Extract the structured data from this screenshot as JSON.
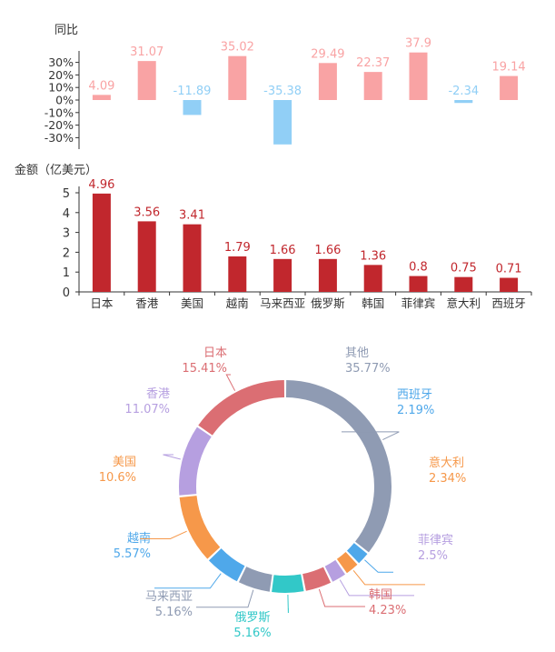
{
  "chart_data": [
    {
      "type": "bar",
      "ylabel": "同比",
      "categories": [
        "日本",
        "香港",
        "美国",
        "越南",
        "马来西亚",
        "俄罗斯",
        "韩国",
        "菲律宾",
        "意大利",
        "西班牙"
      ],
      "values": [
        4.09,
        31.07,
        -11.89,
        35.02,
        -35.38,
        29.49,
        22.37,
        37.9,
        -2.34,
        19.14
      ],
      "value_labels": [
        "4.09",
        "31.07",
        "-11.89",
        "35.02",
        "-35.38",
        "29.49",
        "22.37",
        "37.9",
        "-2.34",
        "19.14"
      ],
      "yticks": [
        "30%",
        "20%",
        "10%",
        "0%",
        "-10%",
        "-20%",
        "-30%"
      ],
      "ylim": [
        -35,
        35
      ],
      "colors": {
        "positive": "#f9a3a4",
        "negative": "#91cff6"
      }
    },
    {
      "type": "bar",
      "ylabel": "金额（亿美元）",
      "categories": [
        "日本",
        "香港",
        "美国",
        "越南",
        "马来西亚",
        "俄罗斯",
        "韩国",
        "菲律宾",
        "意大利",
        "西班牙"
      ],
      "values": [
        4.96,
        3.56,
        3.41,
        1.79,
        1.66,
        1.66,
        1.36,
        0.8,
        0.75,
        0.71
      ],
      "value_labels": [
        "4.96",
        "3.56",
        "3.41",
        "1.79",
        "1.66",
        "1.66",
        "1.36",
        "0.8",
        "0.75",
        "0.71"
      ],
      "yticks": [
        "0",
        "1",
        "2",
        "3",
        "4",
        "5"
      ],
      "ylim": [
        0,
        5
      ],
      "colors": {
        "bar": "#c1272d",
        "label": "#c1272d"
      }
    },
    {
      "type": "pie",
      "slices": [
        {
          "name": "其他",
          "pct_label": "35.77%",
          "value": 35.77,
          "color": "#8f9bb3"
        },
        {
          "name": "西班牙",
          "pct_label": "2.19%",
          "value": 2.19,
          "color": "#4fa8ea"
        },
        {
          "name": "意大利",
          "pct_label": "2.34%",
          "value": 2.34,
          "color": "#f6984a"
        },
        {
          "name": "菲律宾",
          "pct_label": "2.5%",
          "value": 2.5,
          "color": "#b69fe0"
        },
        {
          "name": "韩国",
          "pct_label": "4.23%",
          "value": 4.23,
          "color": "#db6e73"
        },
        {
          "name": "俄罗斯",
          "pct_label": "5.16%",
          "value": 5.16,
          "color": "#32c8c8"
        },
        {
          "name": "马来西亚",
          "pct_label": "5.16%",
          "value": 5.16,
          "color": "#8f9bb3"
        },
        {
          "name": "越南",
          "pct_label": "5.57%",
          "value": 5.57,
          "color": "#4fa8ea"
        },
        {
          "name": "美国",
          "pct_label": "10.6%",
          "value": 10.6,
          "color": "#f6984a"
        },
        {
          "name": "香港",
          "pct_label": "11.07%",
          "value": 11.07,
          "color": "#b69fe0"
        },
        {
          "name": "日本",
          "pct_label": "15.41%",
          "value": 15.41,
          "color": "#db6e73"
        }
      ]
    }
  ]
}
